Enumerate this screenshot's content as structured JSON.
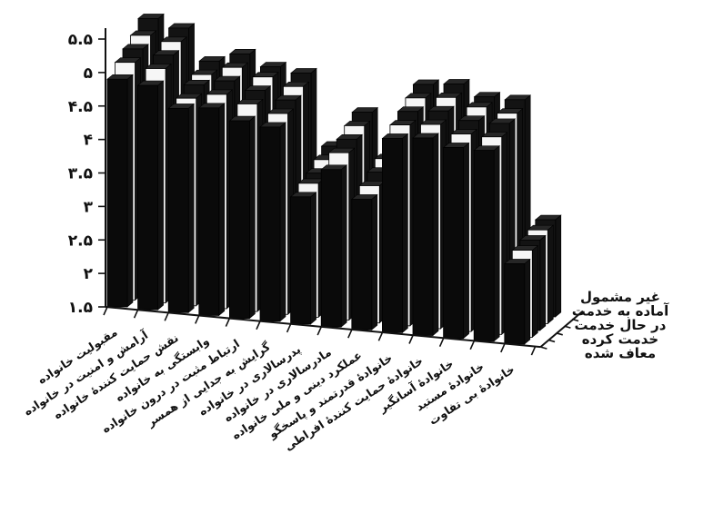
{
  "chart_data": {
    "type": "bar",
    "variant": "3d-grouped-depth",
    "title": "",
    "xlabel": "",
    "ylabel": "",
    "ylim": [
      1.5,
      5.5
    ],
    "y_ticks": [
      "۵.۵",
      "۵",
      "۴.۵",
      "۴",
      "۳.۵",
      "۳",
      "۲.۵",
      "۲",
      "۱.۵"
    ],
    "categories": [
      "مقبولیت خانواده",
      "آرامش و امنیت در خانواده",
      "نقش حمایت کنندهٔ خانواده",
      "وابستگی به خانواده",
      "ارتباط مثبت در درون خانواده",
      "گرایش به جدایی از همسر",
      "پدرسالاری در خانواده",
      "مادرسالاری در خانواده",
      "عملکرد دینی و ملی خانواده",
      "خانوادهٔ قدرتمند و پاسخگو",
      "خانوادهٔ حمایت کنندهٔ افراطی",
      "خانوادهٔ آسانگیر",
      "خانوادهٔ مستبد",
      "خانوادهٔ بی تفاوت"
    ],
    "series": [
      {
        "name": "معاف شده",
        "values": [
          4.9,
          4.85,
          4.55,
          4.6,
          4.45,
          4.4,
          3.4,
          3.85,
          3.45,
          4.4,
          4.45,
          4.35,
          4.35,
          2.7
        ]
      },
      {
        "name": "خدمت کرده",
        "values": [
          5.05,
          5.0,
          4.6,
          4.7,
          4.6,
          4.5,
          3.5,
          4.0,
          3.55,
          4.5,
          4.55,
          4.45,
          4.45,
          2.8
        ]
      },
      {
        "name": "در حال خدمت",
        "values": [
          5.15,
          5.1,
          4.7,
          4.8,
          4.7,
          4.6,
          3.55,
          4.1,
          3.65,
          4.6,
          4.65,
          4.55,
          4.55,
          2.85
        ]
      },
      {
        "name": "آماده به خدمت",
        "values": [
          5.25,
          5.2,
          4.75,
          4.9,
          4.8,
          4.7,
          3.65,
          4.2,
          3.75,
          4.7,
          4.75,
          4.65,
          4.6,
          2.9
        ]
      },
      {
        "name": "غیر مشمول",
        "values": [
          5.4,
          5.3,
          4.85,
          5.0,
          4.85,
          4.8,
          3.75,
          4.3,
          3.8,
          4.8,
          4.85,
          4.7,
          4.7,
          2.95
        ]
      }
    ],
    "grid": false,
    "legend": "series labels on depth axis, right side"
  }
}
